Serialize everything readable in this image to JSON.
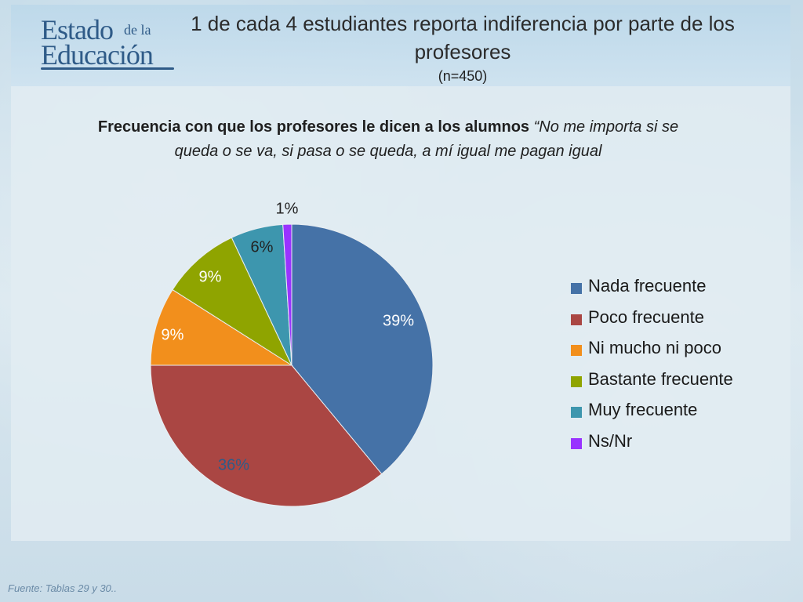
{
  "header": {
    "logo_line1": "Estado",
    "logo_small": "de la",
    "logo_line2": "Educación",
    "title": "1 de cada 4 estudiantes reporta indiferencia por parte de los profesores",
    "sample": "(n=450)"
  },
  "chart_data": {
    "type": "pie",
    "title_bold": "Frecuencia con que los profesores le dicen a los alumnos",
    "title_italic": "“No me importa si se queda o se va, si pasa o se queda, a mí igual me pagan igual",
    "categories": [
      "Nada frecuente",
      "Poco frecuente",
      "Ni mucho ni poco",
      "Bastante frecuente",
      "Muy frecuente",
      "Ns/Nr"
    ],
    "values": [
      39,
      36,
      9,
      9,
      6,
      1
    ],
    "labels": [
      "39%",
      "36%",
      "9%",
      "9%",
      "6%",
      "1%"
    ],
    "colors": [
      "#4572a7",
      "#aa4643",
      "#f28f1c",
      "#8fa400",
      "#3d96ae",
      "#9933ff"
    ],
    "label_colors": [
      "#ffffff",
      "#2f5b88",
      "#ffffff",
      "#ffffff",
      "#222222",
      "#222222"
    ],
    "legend_position": "right"
  },
  "footer": {
    "source": "Fuente: Tablas 29 y 30.."
  }
}
